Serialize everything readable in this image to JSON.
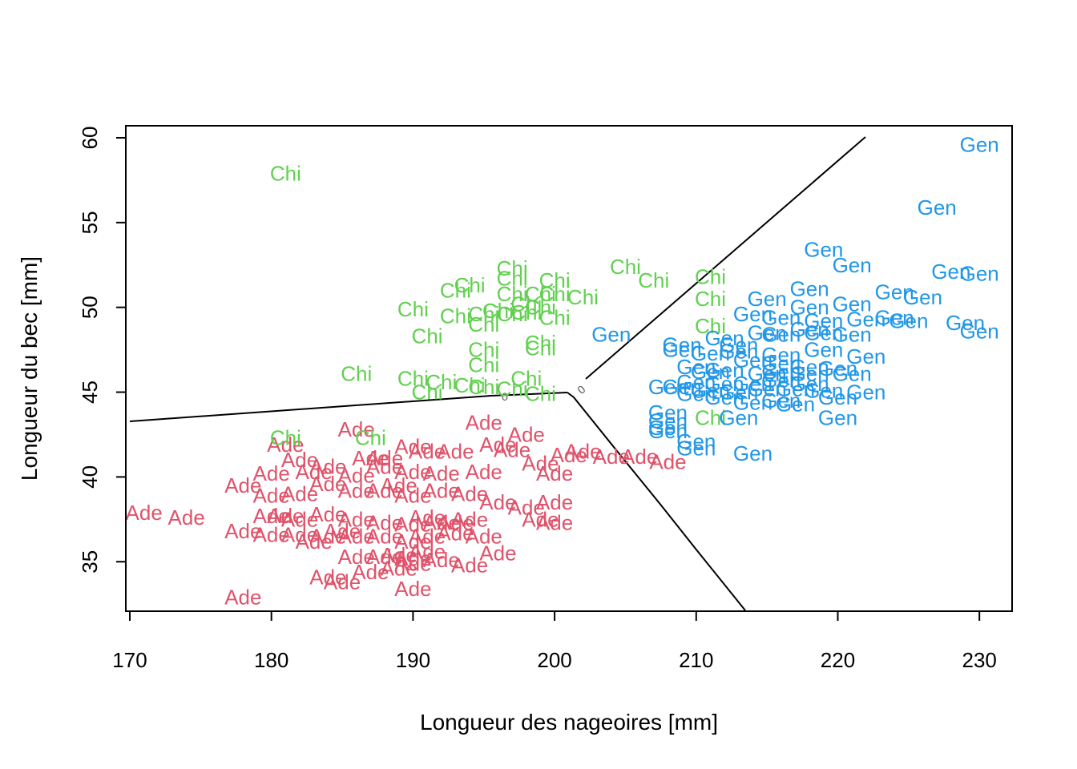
{
  "chart_data": {
    "type": "scatter",
    "title": "",
    "xlabel": "Longueur des nageoires [mm]",
    "ylabel": "Longueur du bec [mm]",
    "xlim": [
      169.8,
      232.3
    ],
    "ylim": [
      32,
      60.7
    ],
    "xticks": [
      170,
      180,
      190,
      200,
      210,
      220,
      230
    ],
    "yticks": [
      35,
      40,
      45,
      50,
      55,
      60
    ],
    "grid": false,
    "legend": "none",
    "contour_level_label": "0",
    "colors": {
      "Ade": "#DF536B",
      "Chi": "#61D04F",
      "Gen": "#2297E6",
      "boundary": "#000000"
    },
    "series": [
      {
        "label": "Ade",
        "color": "#DF536B",
        "points": [
          [
            181,
            41.9
          ],
          [
            186,
            42.8
          ],
          [
            195,
            43.2
          ],
          [
            198,
            42.5
          ],
          [
            197,
            41.6
          ],
          [
            196,
            41.9
          ],
          [
            193,
            41.5
          ],
          [
            191,
            41.5
          ],
          [
            190,
            41.8
          ],
          [
            188,
            41.1
          ],
          [
            187,
            41.1
          ],
          [
            182,
            41
          ],
          [
            184,
            40.6
          ],
          [
            180,
            40.2
          ],
          [
            183,
            40.3
          ],
          [
            186,
            40.1
          ],
          [
            188,
            40.6
          ],
          [
            190,
            40.3
          ],
          [
            192,
            40.2
          ],
          [
            195,
            40.3
          ],
          [
            199,
            40.8
          ],
          [
            201,
            41.3
          ],
          [
            202,
            41.5
          ],
          [
            204,
            41.2
          ],
          [
            206,
            41.2
          ],
          [
            208,
            40.9
          ],
          [
            200,
            40.2
          ],
          [
            178,
            39.5
          ],
          [
            180,
            38.9
          ],
          [
            182,
            39
          ],
          [
            184,
            39.6
          ],
          [
            186,
            39.2
          ],
          [
            188,
            39.2
          ],
          [
            189,
            39.5
          ],
          [
            190,
            38.9
          ],
          [
            192,
            39.2
          ],
          [
            194,
            39
          ],
          [
            196,
            38.5
          ],
          [
            198,
            38.2
          ],
          [
            200,
            38.5
          ],
          [
            171,
            37.9
          ],
          [
            174,
            37.6
          ],
          [
            178,
            36.8
          ],
          [
            180,
            37.7
          ],
          [
            181,
            37.7
          ],
          [
            182,
            37.5
          ],
          [
            184,
            37.8
          ],
          [
            186,
            37.5
          ],
          [
            188,
            37.3
          ],
          [
            190,
            37.2
          ],
          [
            191,
            37.6
          ],
          [
            192,
            37.3
          ],
          [
            193,
            37.3
          ],
          [
            194,
            37.5
          ],
          [
            199,
            37.5
          ],
          [
            200,
            37.3
          ],
          [
            180,
            36.6
          ],
          [
            182,
            36.6
          ],
          [
            183,
            36.2
          ],
          [
            184,
            36.5
          ],
          [
            185,
            36.8
          ],
          [
            186,
            36.5
          ],
          [
            188,
            36.5
          ],
          [
            190,
            36.2
          ],
          [
            191,
            36.5
          ],
          [
            193,
            36.7
          ],
          [
            195,
            36.5
          ],
          [
            186,
            35.3
          ],
          [
            188,
            35.3
          ],
          [
            189,
            35.4
          ],
          [
            190,
            35.2
          ],
          [
            191,
            35.6
          ],
          [
            192,
            35.1
          ],
          [
            194,
            34.8
          ],
          [
            196,
            35.5
          ],
          [
            184,
            34.1
          ],
          [
            185,
            33.8
          ],
          [
            187,
            34.4
          ],
          [
            189,
            34.6
          ],
          [
            190,
            34.9
          ],
          [
            178,
            32.9
          ],
          [
            190,
            33.4
          ]
        ]
      },
      {
        "label": "Chi",
        "color": "#61D04F",
        "points": [
          [
            181,
            57.9
          ],
          [
            197,
            52.3
          ],
          [
            197,
            51.7
          ],
          [
            200,
            51.6
          ],
          [
            205,
            52.4
          ],
          [
            207,
            51.6
          ],
          [
            211,
            51.8
          ],
          [
            193,
            51
          ],
          [
            194,
            51.3
          ],
          [
            197,
            50.8
          ],
          [
            199,
            50.8
          ],
          [
            200,
            50.8
          ],
          [
            202,
            50.6
          ],
          [
            198,
            50.2
          ],
          [
            199,
            50
          ],
          [
            211,
            50.5
          ],
          [
            190,
            49.9
          ],
          [
            193,
            49.5
          ],
          [
            195,
            49.6
          ],
          [
            196,
            49.8
          ],
          [
            197,
            49.6
          ],
          [
            198,
            49.7
          ],
          [
            200,
            49.4
          ],
          [
            195,
            49
          ],
          [
            211,
            48.9
          ],
          [
            191,
            48.3
          ],
          [
            199,
            47.9
          ],
          [
            199,
            47.6
          ],
          [
            195,
            47.5
          ],
          [
            195,
            46.6
          ],
          [
            186,
            46.1
          ],
          [
            190,
            45.8
          ],
          [
            192,
            45.6
          ],
          [
            194,
            45.4
          ],
          [
            198,
            45.8
          ],
          [
            195,
            45.3
          ],
          [
            197,
            45.2
          ],
          [
            191,
            45
          ],
          [
            199,
            44.9
          ],
          [
            211,
            43.5
          ],
          [
            181,
            42.3
          ],
          [
            187,
            42.3
          ]
        ]
      },
      {
        "label": "Gen",
        "color": "#2297E6",
        "points": [
          [
            230,
            59.6
          ],
          [
            227,
            55.9
          ],
          [
            219,
            53.4
          ],
          [
            221,
            52.5
          ],
          [
            228,
            52.1
          ],
          [
            230,
            52
          ],
          [
            218,
            51.1
          ],
          [
            224,
            50.9
          ],
          [
            226,
            50.6
          ],
          [
            215,
            50.5
          ],
          [
            218,
            50
          ],
          [
            221,
            50.2
          ],
          [
            214,
            49.6
          ],
          [
            216,
            49.4
          ],
          [
            219,
            49.2
          ],
          [
            222,
            49.3
          ],
          [
            224,
            49.4
          ],
          [
            225,
            49.2
          ],
          [
            229,
            49.1
          ],
          [
            230,
            48.6
          ],
          [
            218,
            48.7
          ],
          [
            219,
            48.5
          ],
          [
            221,
            48.4
          ],
          [
            212,
            48.2
          ],
          [
            215,
            48.5
          ],
          [
            216,
            48.4
          ],
          [
            213,
            47.8
          ],
          [
            209,
            47.8
          ],
          [
            204,
            48.4
          ],
          [
            209,
            47.5
          ],
          [
            211,
            47.3
          ],
          [
            213,
            47.4
          ],
          [
            216,
            47.2
          ],
          [
            219,
            47.5
          ],
          [
            222,
            47.1
          ],
          [
            214,
            46.9
          ],
          [
            216,
            46.7
          ],
          [
            218,
            46.5
          ],
          [
            220,
            46.4
          ],
          [
            221,
            46.1
          ],
          [
            210,
            46.5
          ],
          [
            211,
            46.2
          ],
          [
            212,
            46.3
          ],
          [
            215,
            46.1
          ],
          [
            216,
            46.2
          ],
          [
            218,
            46.1
          ],
          [
            210,
            45.6
          ],
          [
            212,
            45.5
          ],
          [
            214,
            45.5
          ],
          [
            216,
            45.7
          ],
          [
            218,
            45.5
          ],
          [
            209,
            45.3
          ],
          [
            211,
            45.1
          ],
          [
            213,
            45
          ],
          [
            215,
            45.2
          ],
          [
            217,
            45.2
          ],
          [
            219,
            45.1
          ],
          [
            222,
            45
          ],
          [
            208,
            45.3
          ],
          [
            210,
            44.9
          ],
          [
            212,
            44.7
          ],
          [
            214,
            44.4
          ],
          [
            216,
            44.5
          ],
          [
            217,
            44.3
          ],
          [
            220,
            44.7
          ],
          [
            208,
            43.8
          ],
          [
            208,
            43.3
          ],
          [
            208,
            42.9
          ],
          [
            208,
            42.7
          ],
          [
            213,
            43.5
          ],
          [
            220,
            43.5
          ],
          [
            210,
            42.1
          ],
          [
            210,
            41.7
          ],
          [
            214,
            41.4
          ]
        ]
      }
    ]
  }
}
